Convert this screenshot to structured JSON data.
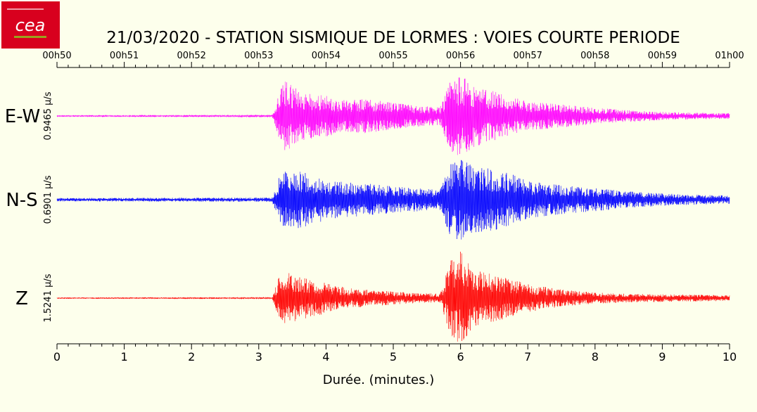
{
  "logo": {
    "text": "cea",
    "colors": {
      "bg": "#d8001e",
      "text": "#ffffff",
      "underline": "#9aa11e"
    }
  },
  "title": "21/03/2020  -  STATION SISMIQUE DE LORMES : VOIES COURTE PERIODE",
  "chart_data": {
    "type": "line",
    "title": "21/03/2020  -  STATION SISMIQUE DE LORMES : VOIES COURTE PERIODE",
    "xlabel": "Durée.  (minutes.)",
    "xlim": [
      0,
      10
    ],
    "x_ticks_bottom": [
      "0",
      "1",
      "2",
      "3",
      "4",
      "5",
      "6",
      "7",
      "8",
      "9",
      "10"
    ],
    "x_ticks_top": [
      "00h50",
      "00h51",
      "00h52",
      "00h53",
      "00h54",
      "00h55",
      "00h56",
      "00h57",
      "00h58",
      "00h59",
      "01h00"
    ],
    "grid": false,
    "series": [
      {
        "name": "E-W",
        "color": "#ff00ff",
        "scale_label": "0.9465 µ/s",
        "envelope_minutes": [
          0,
          3.2,
          3.3,
          3.4,
          3.6,
          3.8,
          4.0,
          4.3,
          4.6,
          5.0,
          5.4,
          5.7,
          5.85,
          6.0,
          6.2,
          6.5,
          6.8,
          7.0,
          7.5,
          8.0,
          8.5,
          9.0,
          9.5,
          10
        ],
        "envelope_relative": [
          0.02,
          0.03,
          0.55,
          0.9,
          0.6,
          0.55,
          0.5,
          0.38,
          0.42,
          0.32,
          0.25,
          0.22,
          0.85,
          1.0,
          0.75,
          0.6,
          0.45,
          0.35,
          0.28,
          0.2,
          0.14,
          0.1,
          0.08,
          0.07
        ]
      },
      {
        "name": "N-S",
        "color": "#0000ff",
        "scale_label": "0.6901 µ/s",
        "envelope_minutes": [
          0,
          3.2,
          3.3,
          3.4,
          3.6,
          3.8,
          4.0,
          4.3,
          4.6,
          5.0,
          5.4,
          5.7,
          5.85,
          6.0,
          6.2,
          6.5,
          6.8,
          7.0,
          7.5,
          8.0,
          8.5,
          9.0,
          9.5,
          10
        ],
        "envelope_relative": [
          0.04,
          0.05,
          0.55,
          0.7,
          0.7,
          0.6,
          0.5,
          0.42,
          0.4,
          0.32,
          0.28,
          0.25,
          0.9,
          1.0,
          0.8,
          0.75,
          0.6,
          0.45,
          0.35,
          0.28,
          0.2,
          0.15,
          0.12,
          0.1
        ]
      },
      {
        "name": "Z",
        "color": "#ff0000",
        "scale_label": "1.5241 µ/s",
        "envelope_minutes": [
          0,
          3.2,
          3.3,
          3.4,
          3.6,
          3.8,
          4.0,
          4.3,
          4.6,
          5.0,
          5.4,
          5.7,
          5.85,
          6.0,
          6.2,
          6.5,
          6.8,
          7.0,
          7.5,
          8.0,
          8.5,
          9.0,
          9.5,
          10
        ],
        "envelope_relative": [
          0.015,
          0.02,
          0.45,
          0.55,
          0.5,
          0.4,
          0.33,
          0.22,
          0.18,
          0.14,
          0.1,
          0.1,
          0.8,
          1.0,
          0.6,
          0.5,
          0.4,
          0.3,
          0.18,
          0.12,
          0.09,
          0.08,
          0.07,
          0.06
        ]
      }
    ]
  }
}
